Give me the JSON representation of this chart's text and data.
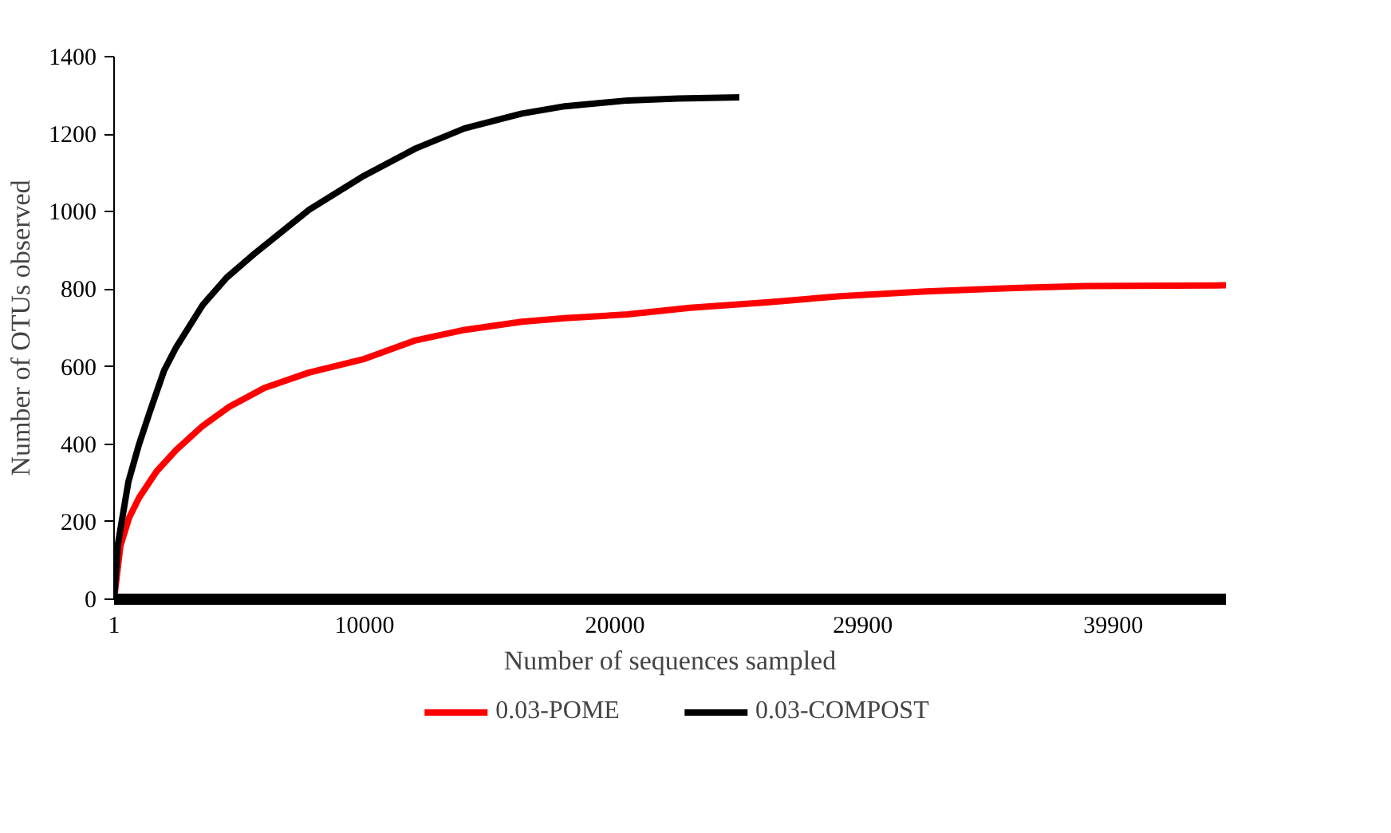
{
  "chart_data": {
    "type": "line",
    "xlabel": "Number of sequences sampled",
    "ylabel": "Number of OTUs observed",
    "xlim": [
      1,
      44400
    ],
    "xticks": [
      1,
      10000,
      20000,
      29900,
      39900
    ],
    "ylim": [
      0,
      1400
    ],
    "yticks": [
      0,
      200,
      400,
      600,
      800,
      1000,
      1200,
      1400
    ],
    "grid": false,
    "legend": "bottom",
    "marker": "none",
    "line_style": "solid",
    "series": [
      {
        "name": "0.03-POME",
        "color": "#ff0000",
        "x": [
          1,
          255,
          600,
          1000,
          1700,
          2480,
          3500,
          4590,
          6000,
          7790,
          10000,
          12040,
          14000,
          16280,
          18000,
          20510,
          23000,
          26050,
          29000,
          32420,
          35500,
          38790,
          44400
        ],
        "values": [
          0,
          138,
          210,
          262,
          330,
          385,
          445,
          496,
          545,
          585,
          620,
          668,
          695,
          716,
          725,
          735,
          752,
          766,
          782,
          794,
          802,
          808,
          810
        ]
      },
      {
        "name": "0.03-COMPOST",
        "color": "#000000",
        "x": [
          1,
          150,
          573,
          1000,
          1420,
          2000,
          2480,
          3550,
          4500,
          5670,
          7790,
          9910,
          12040,
          14000,
          16280,
          18000,
          20510,
          22500,
          24970
        ],
        "values": [
          0,
          140,
          303,
          400,
          482,
          590,
          650,
          760,
          830,
          895,
          1005,
          1090,
          1163,
          1215,
          1253,
          1272,
          1287,
          1292,
          1295
        ]
      }
    ]
  }
}
